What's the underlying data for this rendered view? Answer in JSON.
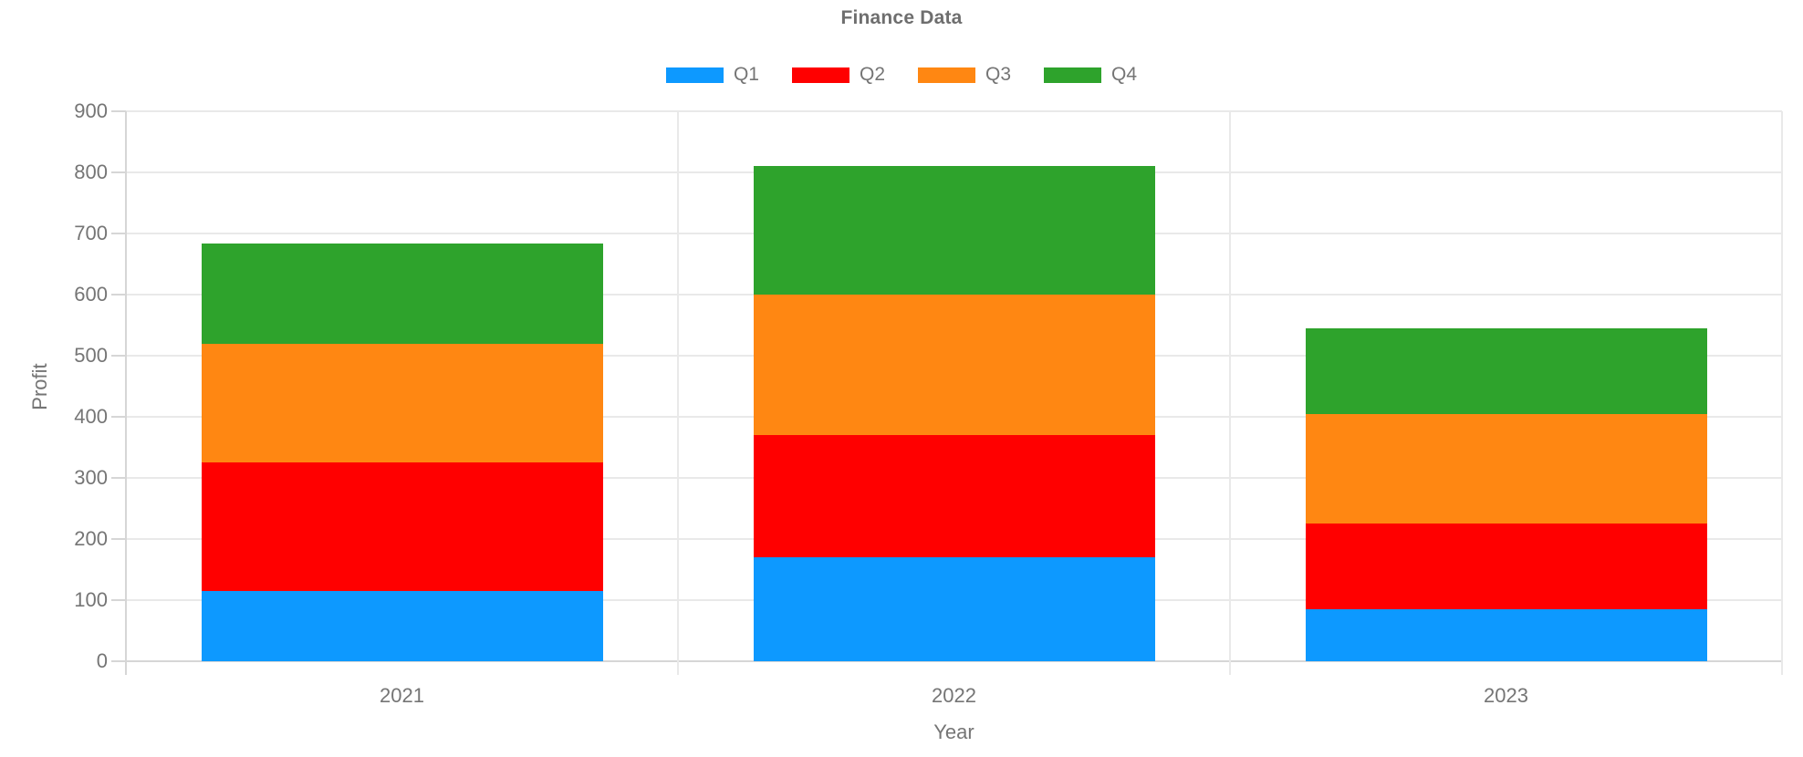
{
  "chart_data": {
    "type": "bar",
    "stacked": true,
    "title": "Finance Data",
    "xlabel": "Year",
    "ylabel": "Profit",
    "categories": [
      "2021",
      "2022",
      "2023"
    ],
    "series": [
      {
        "name": "Q1",
        "color": "#0d99ff",
        "values": [
          115,
          170,
          85
        ]
      },
      {
        "name": "Q2",
        "color": "#ff0000",
        "values": [
          210,
          200,
          140
        ]
      },
      {
        "name": "Q3",
        "color": "#ff8712",
        "values": [
          195,
          230,
          180
        ]
      },
      {
        "name": "Q4",
        "color": "#2ea32c",
        "values": [
          163,
          210,
          140
        ]
      }
    ],
    "stack_totals": [
      683,
      810,
      545
    ],
    "ylim": [
      0,
      900
    ],
    "yticks": [
      0,
      100,
      200,
      300,
      400,
      500,
      600,
      700,
      800,
      900
    ],
    "grid": true,
    "legend_position": "top",
    "text_color": "#757575",
    "grid_color": "#e9e9e9",
    "axis_color": "#d6d6d6"
  }
}
